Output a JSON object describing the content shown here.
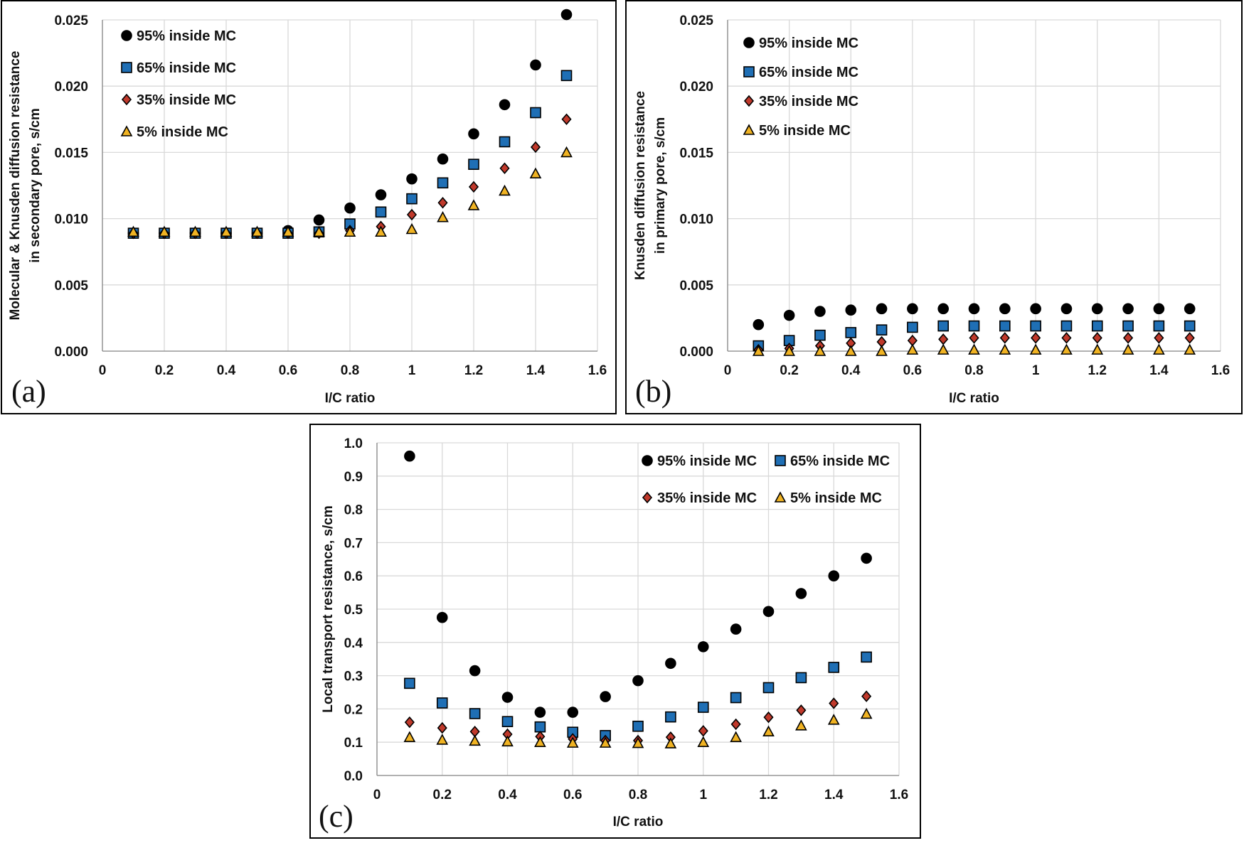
{
  "chart_data": [
    {
      "panel": "(a)",
      "type": "scatter",
      "xlabel": "I/C ratio",
      "ylabel": [
        "Molecular & Knusden diffusion resistance",
        "in secondary pore, s/cm"
      ],
      "xlim": [
        0,
        1.6
      ],
      "ylim": [
        0,
        0.025
      ],
      "xticks": [
        "0",
        "0.2",
        "0.4",
        "0.6",
        "0.8",
        "1",
        "1.2",
        "1.4",
        "1.6"
      ],
      "yticks": [
        "0.000",
        "0.005",
        "0.010",
        "0.015",
        "0.020",
        "0.025"
      ],
      "grid": true,
      "legend_placement": "top-left",
      "x": [
        0.1,
        0.2,
        0.3,
        0.4,
        0.5,
        0.6,
        0.7,
        0.8,
        0.9,
        1.0,
        1.1,
        1.2,
        1.3,
        1.4,
        1.5
      ],
      "series": [
        {
          "name": "95% inside MC",
          "marker": "circle",
          "color": "#000000",
          "values": [
            0.0089,
            0.0089,
            0.0089,
            0.0089,
            0.0089,
            0.0091,
            0.0099,
            0.0108,
            0.0118,
            0.013,
            0.0145,
            0.0164,
            0.0186,
            0.0216,
            0.0254
          ]
        },
        {
          "name": "65% inside MC",
          "marker": "square",
          "color": "#1f6fb5",
          "values": [
            0.0089,
            0.0089,
            0.0089,
            0.0089,
            0.0089,
            0.0089,
            0.009,
            0.0096,
            0.0105,
            0.0115,
            0.0127,
            0.0141,
            0.0158,
            0.018,
            0.0208
          ]
        },
        {
          "name": "35% inside MC",
          "marker": "diamond",
          "color": "#c0392b",
          "values": [
            0.0089,
            0.0089,
            0.0089,
            0.0089,
            0.0089,
            0.0089,
            0.0089,
            0.0091,
            0.0094,
            0.0103,
            0.0112,
            0.0124,
            0.0138,
            0.0154,
            0.0175
          ]
        },
        {
          "name": "5% inside MC",
          "marker": "triangle",
          "color": "#f0b323",
          "values": [
            0.009,
            0.009,
            0.009,
            0.009,
            0.009,
            0.009,
            0.009,
            0.009,
            0.009,
            0.0092,
            0.0101,
            0.011,
            0.0121,
            0.0134,
            0.015
          ]
        }
      ]
    },
    {
      "panel": "(b)",
      "type": "scatter",
      "xlabel": "I/C ratio",
      "ylabel": [
        "Knusden diffusion resistance",
        "in primary pore, s/cm"
      ],
      "xlim": [
        0,
        1.6
      ],
      "ylim": [
        0,
        0.025
      ],
      "xticks": [
        "0",
        "0.2",
        "0.4",
        "0.6",
        "0.8",
        "1",
        "1.2",
        "1.4",
        "1.6"
      ],
      "yticks": [
        "0.000",
        "0.005",
        "0.010",
        "0.015",
        "0.020",
        "0.025"
      ],
      "grid": true,
      "legend_placement": "top-left",
      "x": [
        0.1,
        0.2,
        0.3,
        0.4,
        0.5,
        0.6,
        0.7,
        0.8,
        0.9,
        1.0,
        1.1,
        1.2,
        1.3,
        1.4,
        1.5
      ],
      "series": [
        {
          "name": "95% inside MC",
          "marker": "circle",
          "color": "#000000",
          "values": [
            0.002,
            0.0027,
            0.003,
            0.0031,
            0.0032,
            0.0032,
            0.0032,
            0.0032,
            0.0032,
            0.0032,
            0.0032,
            0.0032,
            0.0032,
            0.0032,
            0.0032
          ]
        },
        {
          "name": "65% inside MC",
          "marker": "square",
          "color": "#1f6fb5",
          "values": [
            0.0004,
            0.0008,
            0.0012,
            0.0014,
            0.0016,
            0.0018,
            0.0019,
            0.0019,
            0.0019,
            0.0019,
            0.0019,
            0.0019,
            0.0019,
            0.0019,
            0.0019
          ]
        },
        {
          "name": "35% inside MC",
          "marker": "diamond",
          "color": "#c0392b",
          "values": [
            0.0001,
            0.0002,
            0.0004,
            0.0006,
            0.0007,
            0.0008,
            0.0009,
            0.001,
            0.001,
            0.001,
            0.001,
            0.001,
            0.001,
            0.001,
            0.001
          ]
        },
        {
          "name": "5% inside MC",
          "marker": "triangle",
          "color": "#f0b323",
          "values": [
            0.0,
            0.0,
            0.0,
            0.0,
            0.0,
            0.0001,
            0.0001,
            0.0001,
            0.0001,
            0.0001,
            0.0001,
            0.0001,
            0.0001,
            0.0001,
            0.0001
          ]
        }
      ]
    },
    {
      "panel": "(c)",
      "type": "scatter",
      "xlabel": "I/C ratio",
      "ylabel": [
        "Local transport resistance, s/cm"
      ],
      "xlim": [
        0,
        1.6
      ],
      "ylim": [
        0,
        1.0
      ],
      "xticks": [
        "0",
        "0.2",
        "0.4",
        "0.6",
        "0.8",
        "1",
        "1.2",
        "1.4",
        "1.6"
      ],
      "yticks": [
        "0.0",
        "0.1",
        "0.2",
        "0.3",
        "0.4",
        "0.5",
        "0.6",
        "0.7",
        "0.8",
        "0.9",
        "1.0"
      ],
      "grid": true,
      "legend_placement": "top-right",
      "x": [
        0.1,
        0.2,
        0.3,
        0.4,
        0.5,
        0.6,
        0.7,
        0.8,
        0.9,
        1.0,
        1.1,
        1.2,
        1.3,
        1.4,
        1.5
      ],
      "series": [
        {
          "name": "95% inside MC",
          "marker": "circle",
          "color": "#000000",
          "values": [
            0.96,
            0.475,
            0.315,
            0.235,
            0.19,
            0.19,
            0.237,
            0.285,
            0.337,
            0.387,
            0.44,
            0.493,
            0.547,
            0.6,
            0.653
          ]
        },
        {
          "name": "65% inside MC",
          "marker": "square",
          "color": "#1f6fb5",
          "values": [
            0.277,
            0.218,
            0.186,
            0.162,
            0.146,
            0.13,
            0.12,
            0.148,
            0.176,
            0.205,
            0.234,
            0.264,
            0.294,
            0.325,
            0.356
          ]
        },
        {
          "name": "35% inside MC",
          "marker": "diamond",
          "color": "#c0392b",
          "values": [
            0.16,
            0.143,
            0.132,
            0.124,
            0.117,
            0.11,
            0.105,
            0.105,
            0.115,
            0.134,
            0.154,
            0.175,
            0.196,
            0.217,
            0.238
          ]
        },
        {
          "name": "5% inside MC",
          "marker": "triangle",
          "color": "#f0b323",
          "values": [
            0.115,
            0.107,
            0.104,
            0.102,
            0.1,
            0.098,
            0.098,
            0.097,
            0.096,
            0.1,
            0.115,
            0.132,
            0.15,
            0.167,
            0.185
          ]
        }
      ]
    }
  ]
}
